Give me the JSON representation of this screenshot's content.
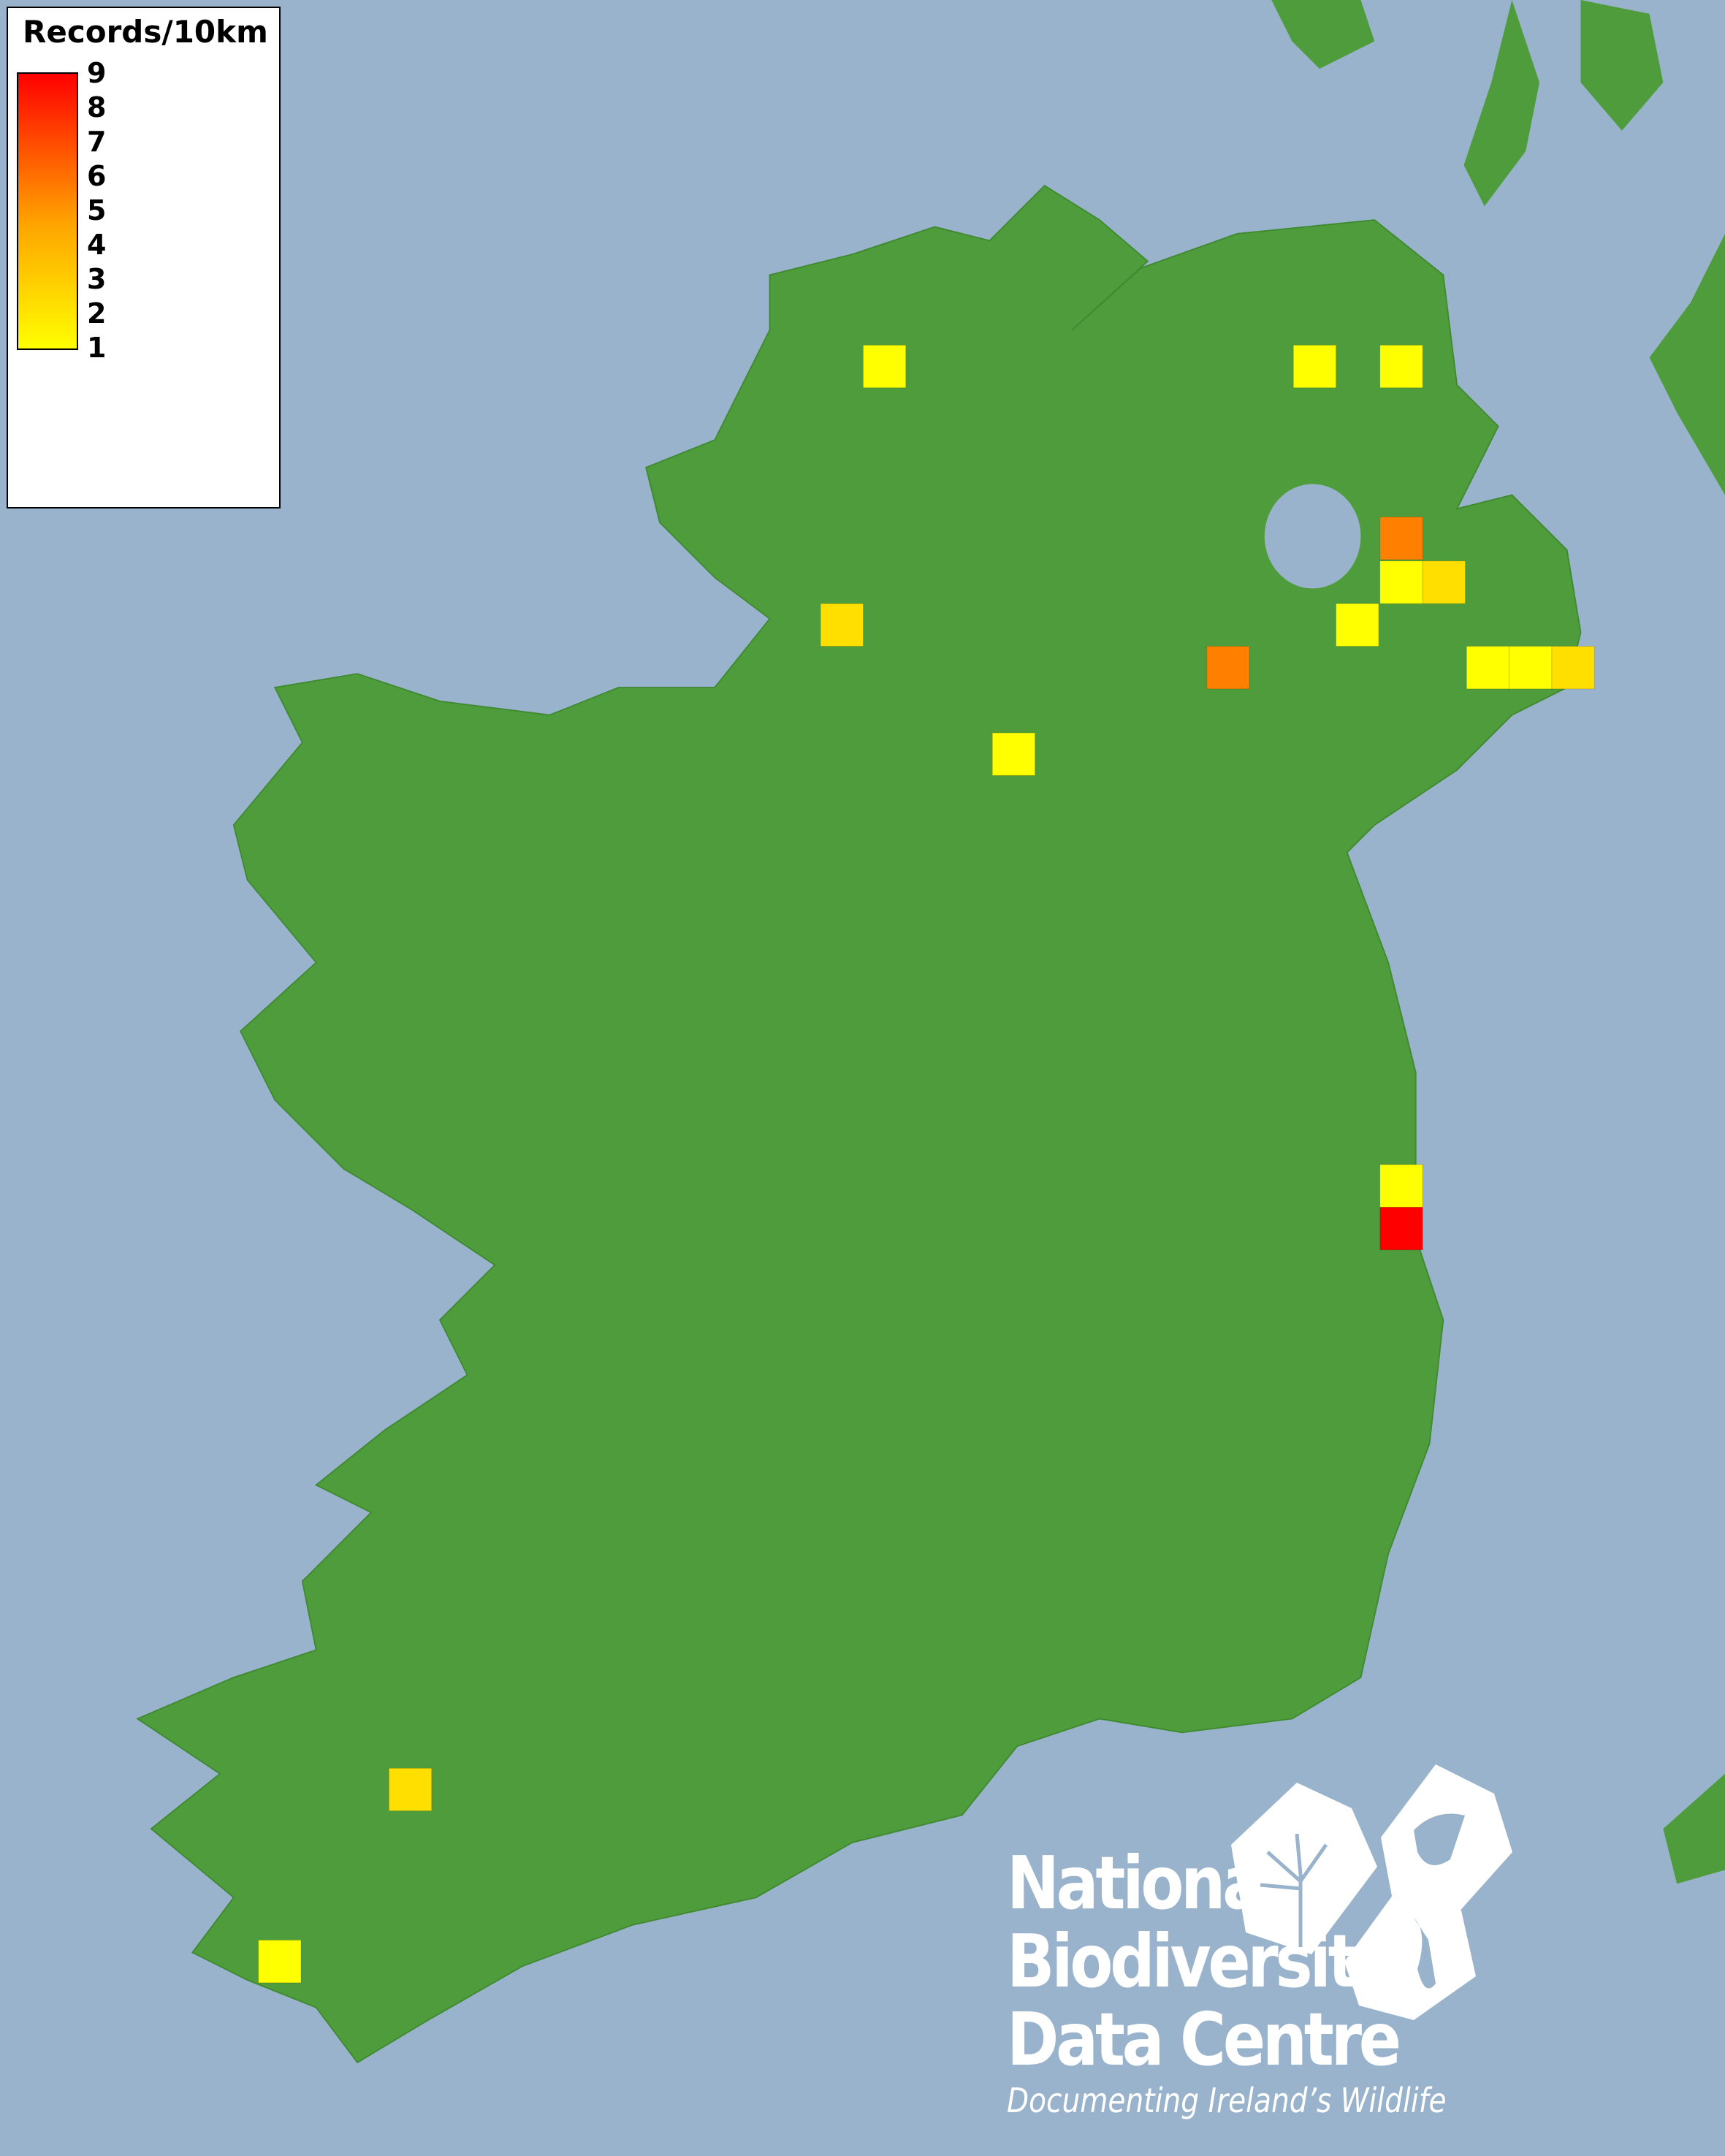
{
  "map": {
    "sea_color": "#9ab3cc",
    "land_color": "#4e9c3b",
    "records_per_square": [
      1,
      1,
      1,
      5,
      1,
      2,
      1,
      2,
      5,
      1,
      1,
      2,
      1,
      1,
      9,
      2,
      1
    ]
  },
  "legend": {
    "title": "Records/10km",
    "scale_min": 1,
    "scale_max": 9,
    "colors": {
      "low": "#ffff00",
      "mid": "#ffa500",
      "high": "#ff0000"
    },
    "labels": [
      "9",
      "8",
      "7",
      "6",
      "5",
      "4",
      "3",
      "2",
      "1"
    ]
  },
  "logo": {
    "line1": "National",
    "line2": "Biodiversity",
    "line3": "Data Centre",
    "tagline": "Documenting Ireland’s Wildlife",
    "icons": [
      "tree-icon",
      "butterfly-icon",
      "seahorse-icon"
    ]
  }
}
